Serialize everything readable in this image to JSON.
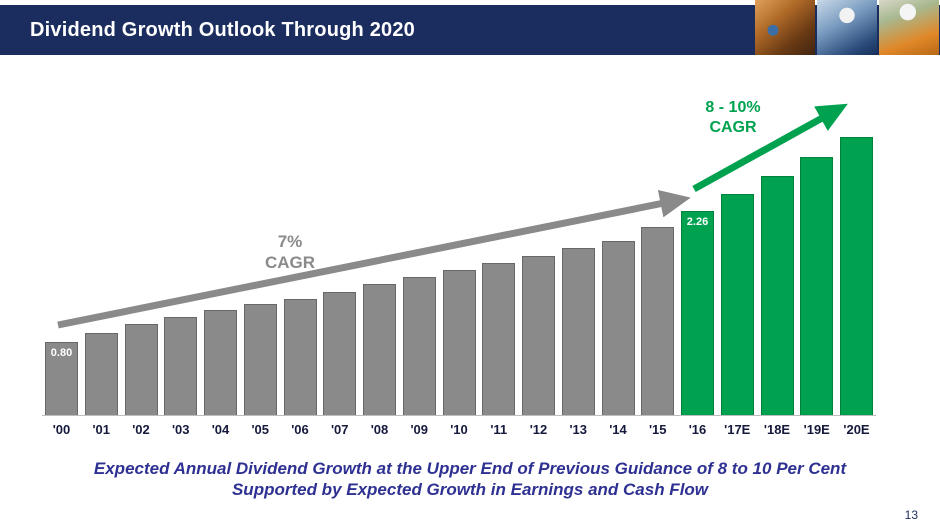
{
  "header": {
    "title": "Dividend Growth Outlook Through 2020",
    "photos": [
      "industrial-plant-workers",
      "worker-blue-hardhat",
      "worker-orange-vest"
    ]
  },
  "chart_data": {
    "type": "bar",
    "title": "Dividend Growth Outlook Through 2020",
    "xlabel": "",
    "ylabel": "",
    "categories": [
      "'00",
      "'01",
      "'02",
      "'03",
      "'04",
      "'05",
      "'06",
      "'07",
      "'08",
      "'09",
      "'10",
      "'11",
      "'12",
      "'13",
      "'14",
      "'15",
      "'16",
      "'17E",
      "'18E",
      "'19E",
      "'20E"
    ],
    "values": [
      0.8,
      0.9,
      1.0,
      1.08,
      1.16,
      1.22,
      1.28,
      1.36,
      1.44,
      1.52,
      1.6,
      1.68,
      1.76,
      1.84,
      1.92,
      2.08,
      2.26,
      2.44,
      2.64,
      2.85,
      3.08
    ],
    "ylim": [
      0,
      3.2
    ],
    "grid": false,
    "legend": "none",
    "forecast_start_index": 16,
    "bar_colors": {
      "historical": "#8a8a8a",
      "forecast": "#00a24f"
    },
    "value_labels": [
      {
        "index": 0,
        "text": "0.80"
      },
      {
        "index": 16,
        "text": "2.26"
      }
    ],
    "annotations": [
      {
        "text": "7%\nCAGR",
        "color": "#8a8a8a",
        "arrow": "gray trend arrow from '00 to '16"
      },
      {
        "text": "8 - 10%\nCAGR",
        "color": "#00a24f",
        "arrow": "green trend arrow from '16 to '20E"
      }
    ]
  },
  "caption": {
    "line1": "Expected Annual Dividend Growth at the Upper End of Previous Guidance of 8 to 10 Per Cent",
    "line2": "Supported by Expected Growth in Earnings and Cash Flow"
  },
  "page_number": "13"
}
